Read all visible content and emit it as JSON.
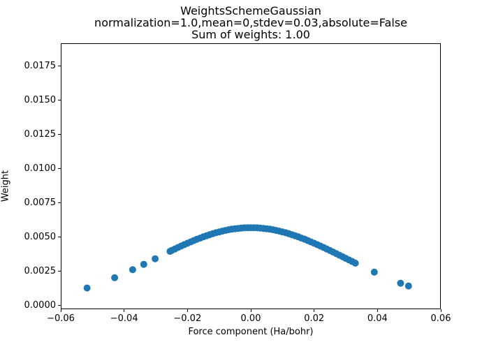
{
  "figure": {
    "title_line1": "WeightsSchemeGaussian",
    "title_line2": "normalization=1.0,mean=0,stdev=0.03,absolute=False",
    "title_line3": "Sum of weights: 1.00"
  },
  "chart_data": {
    "type": "scatter",
    "title": "WeightsSchemeGaussian",
    "subtitle": "normalization=1.0,mean=0,stdev=0.03,absolute=False",
    "subtitle2": "Sum of weights: 1.00",
    "xlabel": "Force component (Ha/bohr)",
    "ylabel": "Weight",
    "xlim": [
      -0.06,
      0.06
    ],
    "ylim": [
      -0.00026,
      0.01918
    ],
    "grid": false,
    "legend_position": "none",
    "marker_color": "#1f77b4",
    "marker_diameter_px": 10,
    "peak_weight": 0.0057,
    "gaussian_stdev": 0.03,
    "xticks": [
      {
        "value": -0.06,
        "label": "−0.06"
      },
      {
        "value": -0.04,
        "label": "−0.04"
      },
      {
        "value": -0.02,
        "label": "−0.02"
      },
      {
        "value": 0.0,
        "label": "0.00"
      },
      {
        "value": 0.02,
        "label": "0.02"
      },
      {
        "value": 0.04,
        "label": "0.04"
      },
      {
        "value": 0.06,
        "label": "0.06"
      }
    ],
    "yticks": [
      {
        "value": 0.0,
        "label": "0.0000"
      },
      {
        "value": 0.0025,
        "label": "0.0025"
      },
      {
        "value": 0.005,
        "label": "0.0050"
      },
      {
        "value": 0.0075,
        "label": "0.0075"
      },
      {
        "value": 0.01,
        "label": "0.0100"
      },
      {
        "value": 0.0125,
        "label": "0.0125"
      },
      {
        "value": 0.015,
        "label": "0.0150"
      },
      {
        "value": 0.0175,
        "label": "0.0175"
      }
    ],
    "points": [
      [
        -0.0517,
        0.00129
      ],
      [
        -0.043,
        0.00204
      ],
      [
        -0.0373,
        0.00263
      ],
      [
        -0.0338,
        0.00302
      ],
      [
        -0.0302,
        0.00343
      ],
      [
        -0.0255,
        0.00397
      ],
      [
        -0.025,
        0.00403
      ],
      [
        -0.024,
        0.00414
      ],
      [
        -0.023,
        0.00425
      ],
      [
        -0.022,
        0.00436
      ],
      [
        -0.021,
        0.00446
      ],
      [
        -0.02,
        0.00456
      ],
      [
        -0.019,
        0.00466
      ],
      [
        -0.018,
        0.00476
      ],
      [
        -0.017,
        0.00486
      ],
      [
        -0.016,
        0.00494
      ],
      [
        -0.015,
        0.00503
      ],
      [
        -0.014,
        0.00511
      ],
      [
        -0.013,
        0.00519
      ],
      [
        -0.012,
        0.00526
      ],
      [
        -0.011,
        0.00533
      ],
      [
        -0.01,
        0.00539
      ],
      [
        -0.009,
        0.00545
      ],
      [
        -0.008,
        0.0055
      ],
      [
        -0.007,
        0.00555
      ],
      [
        -0.006,
        0.00559
      ],
      [
        -0.005,
        0.00562
      ],
      [
        -0.004,
        0.00565
      ],
      [
        -0.003,
        0.00567
      ],
      [
        -0.002,
        0.00569
      ],
      [
        -0.001,
        0.0057
      ],
      [
        0.0,
        0.0057
      ],
      [
        0.001,
        0.0057
      ],
      [
        0.002,
        0.00569
      ],
      [
        0.003,
        0.00567
      ],
      [
        0.004,
        0.00565
      ],
      [
        0.005,
        0.00562
      ],
      [
        0.006,
        0.00559
      ],
      [
        0.007,
        0.00555
      ],
      [
        0.008,
        0.0055
      ],
      [
        0.009,
        0.00545
      ],
      [
        0.01,
        0.00539
      ],
      [
        0.011,
        0.00533
      ],
      [
        0.012,
        0.00526
      ],
      [
        0.013,
        0.00519
      ],
      [
        0.014,
        0.00511
      ],
      [
        0.015,
        0.00503
      ],
      [
        0.016,
        0.00494
      ],
      [
        0.017,
        0.00486
      ],
      [
        0.018,
        0.00476
      ],
      [
        0.019,
        0.00466
      ],
      [
        0.02,
        0.00456
      ],
      [
        0.021,
        0.00446
      ],
      [
        0.022,
        0.00436
      ],
      [
        0.023,
        0.00425
      ],
      [
        0.024,
        0.00414
      ],
      [
        0.025,
        0.00403
      ],
      [
        0.026,
        0.00392
      ],
      [
        0.027,
        0.0038
      ],
      [
        0.028,
        0.00369
      ],
      [
        0.029,
        0.00357
      ],
      [
        0.03,
        0.00346
      ],
      [
        0.031,
        0.00334
      ],
      [
        0.032,
        0.00323
      ],
      [
        0.033,
        0.00311
      ],
      [
        0.039,
        0.00245
      ],
      [
        0.0473,
        0.00164
      ],
      [
        0.0498,
        0.00144
      ]
    ]
  }
}
